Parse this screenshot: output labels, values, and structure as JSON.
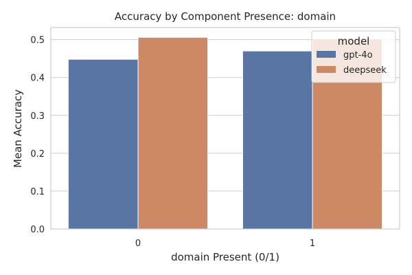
{
  "chart_data": {
    "type": "bar",
    "title": "Accuracy by Component Presence: domain",
    "xlabel": "domain Present (0/1)",
    "ylabel": "Mean Accuracy",
    "categories": [
      "0",
      "1"
    ],
    "series": [
      {
        "name": "gpt-4o",
        "color": "#5875a4",
        "values": [
          0.448,
          0.47
        ]
      },
      {
        "name": "deepseek",
        "color": "#cc8963",
        "values": [
          0.506,
          0.502
        ]
      }
    ],
    "ylim": [
      0,
      0.532
    ],
    "yticks": [
      "0.0",
      "0.1",
      "0.2",
      "0.3",
      "0.4",
      "0.5"
    ],
    "grid": true,
    "legend": {
      "title": "model",
      "position": "top-right"
    }
  }
}
